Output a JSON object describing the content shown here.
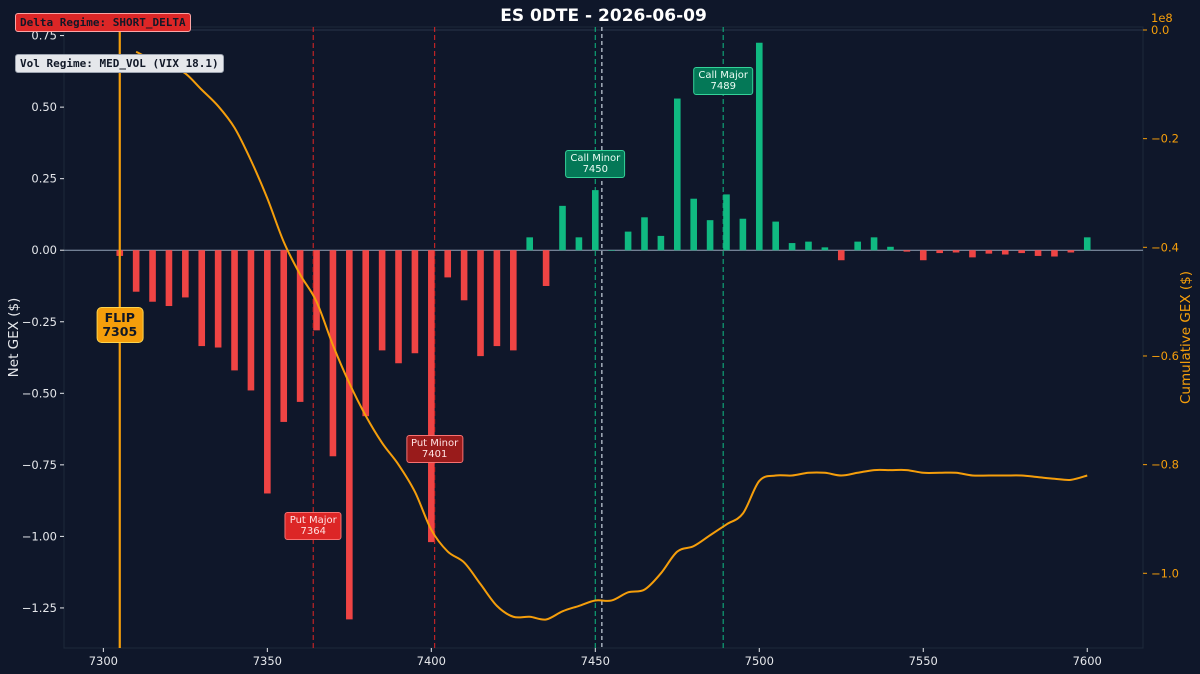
{
  "chart_data": {
    "type": "bar",
    "title": "ES 0DTE  -  2026-06-09",
    "xlabel": "",
    "ylabel": "Net GEX ($)",
    "y2label": "Cumulative GEX ($)",
    "y2_scale_note": "1e8",
    "xlim": [
      7288,
      7617
    ],
    "ylim": [
      -1.39,
      0.78
    ],
    "y2lim": [
      -1.1375,
      0.0055
    ],
    "x_ticks": [
      "7300",
      "7350",
      "7400",
      "7450",
      "7500",
      "7550",
      "7600"
    ],
    "y_ticks": [
      "0.75",
      "0.50",
      "0.25",
      "0.00",
      "−0.25",
      "−0.50",
      "−0.75",
      "−1.00",
      "−1.25"
    ],
    "y2_ticks": [
      "0.0",
      "−0.2",
      "−0.4",
      "−0.6",
      "−0.8",
      "−1.0"
    ],
    "colors": {
      "positive": "#10b981",
      "negative": "#ef4444",
      "cumulative": "#f59e0b",
      "flip": "#f59e0b",
      "background": "#0f172a"
    },
    "series": [
      {
        "name": "Net GEX",
        "x": [
          7305,
          7310,
          7315,
          7320,
          7325,
          7330,
          7335,
          7340,
          7345,
          7350,
          7355,
          7360,
          7365,
          7370,
          7375,
          7380,
          7385,
          7390,
          7395,
          7400,
          7405,
          7410,
          7415,
          7420,
          7425,
          7430,
          7435,
          7440,
          7445,
          7450,
          7455,
          7460,
          7465,
          7470,
          7475,
          7480,
          7485,
          7490,
          7495,
          7500,
          7505,
          7510,
          7515,
          7520,
          7525,
          7530,
          7535,
          7540,
          7545,
          7550,
          7555,
          7560,
          7565,
          7570,
          7575,
          7580,
          7585,
          7590,
          7595,
          7600
        ],
        "values": [
          -0.02,
          -0.145,
          -0.18,
          -0.195,
          -0.165,
          -0.335,
          -0.34,
          -0.42,
          -0.49,
          -0.85,
          -0.6,
          -0.53,
          -0.28,
          -0.72,
          -1.29,
          -0.58,
          -0.35,
          -0.395,
          -0.36,
          -1.02,
          -0.095,
          -0.175,
          -0.37,
          -0.335,
          -0.35,
          0.045,
          -0.125,
          0.155,
          0.045,
          0.21,
          0.0,
          0.065,
          0.115,
          0.05,
          0.53,
          0.18,
          0.105,
          0.195,
          0.11,
          0.725,
          0.1,
          0.025,
          0.03,
          0.01,
          -0.035,
          0.03,
          0.045,
          0.012,
          -0.005,
          -0.035,
          -0.01,
          -0.008,
          -0.025,
          -0.012,
          -0.015,
          -0.01,
          -0.02,
          -0.022,
          -0.008,
          0.045
        ]
      },
      {
        "name": "Cumulative GEX",
        "x": [
          7310,
          7315,
          7320,
          7325,
          7330,
          7335,
          7340,
          7345,
          7350,
          7355,
          7360,
          7365,
          7370,
          7375,
          7380,
          7385,
          7390,
          7395,
          7400,
          7405,
          7410,
          7415,
          7420,
          7425,
          7430,
          7435,
          7440,
          7445,
          7450,
          7455,
          7460,
          7465,
          7470,
          7475,
          7480,
          7485,
          7490,
          7495,
          7500,
          7505,
          7510,
          7515,
          7520,
          7525,
          7530,
          7535,
          7540,
          7545,
          7550,
          7555,
          7560,
          7565,
          7570,
          7575,
          7580,
          7585,
          7590,
          7595,
          7600
        ],
        "values": [
          -0.04,
          -0.055,
          -0.065,
          -0.08,
          -0.11,
          -0.14,
          -0.18,
          -0.24,
          -0.31,
          -0.39,
          -0.45,
          -0.5,
          -0.58,
          -0.65,
          -0.71,
          -0.76,
          -0.8,
          -0.85,
          -0.92,
          -0.96,
          -0.98,
          -1.02,
          -1.06,
          -1.08,
          -1.08,
          -1.085,
          -1.07,
          -1.06,
          -1.05,
          -1.05,
          -1.035,
          -1.03,
          -1.0,
          -0.96,
          -0.95,
          -0.93,
          -0.91,
          -0.89,
          -0.83,
          -0.82,
          -0.82,
          -0.815,
          -0.815,
          -0.82,
          -0.815,
          -0.81,
          -0.81,
          -0.81,
          -0.815,
          -0.815,
          -0.815,
          -0.82,
          -0.82,
          -0.82,
          -0.82,
          -0.823,
          -0.826,
          -0.828,
          -0.82
        ]
      }
    ],
    "levels": [
      {
        "kind": "flip",
        "strike": 7305,
        "label": "FLIP",
        "value": "7305",
        "label_y": -0.26
      },
      {
        "kind": "put-major",
        "strike": 7364,
        "label": "Put Major",
        "value": "7364",
        "label_y": -0.965,
        "fill": "#dc2626"
      },
      {
        "kind": "put-minor",
        "strike": 7401,
        "label": "Put Minor",
        "value": "7401",
        "label_y": -0.695,
        "fill": "#991b1b"
      },
      {
        "kind": "call-minor",
        "strike": 7450,
        "label": "Call Minor",
        "value": "7450",
        "label_y": 0.3
      },
      {
        "kind": "call-major",
        "strike": 7489,
        "label": "Call Major",
        "value": "7489",
        "label_y": 0.59
      }
    ],
    "spot_line": {
      "strike": 7452,
      "color": "#cbd5e1"
    }
  },
  "delta_regime": "Delta Regime: SHORT_DELTA",
  "vol_regime": "Vol Regime: MED_VOL  (VIX 18.1)"
}
